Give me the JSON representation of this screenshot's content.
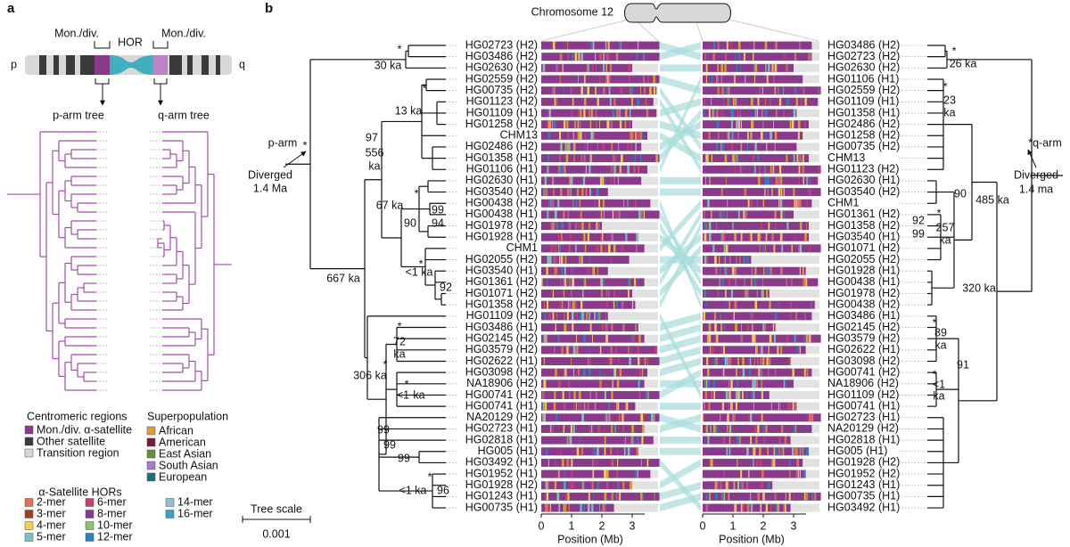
{
  "panel_a": {
    "letter": "a",
    "p": "p",
    "q": "q",
    "mon_div_left": "Mon./div.",
    "hor": "HOR",
    "mon_div_right": "Mon./div.",
    "p_tree": "p-arm tree",
    "q_tree": "q-arm tree"
  },
  "legend": {
    "regions_title": "Centromeric regions",
    "regions": [
      {
        "label": "Mon./div. α-satellite",
        "color": "#8a3a8a"
      },
      {
        "label": "Other satellite",
        "color": "#3a3a3a"
      },
      {
        "label": "Transition region",
        "color": "#d8d8d8"
      }
    ],
    "pop_title": "Superpopulation",
    "pops": [
      {
        "label": "African",
        "color": "#d9a030"
      },
      {
        "label": "American",
        "color": "#7a1838"
      },
      {
        "label": "East Asian",
        "color": "#6b8e35"
      },
      {
        "label": "South Asian",
        "color": "#a77bc9"
      },
      {
        "label": "European",
        "color": "#1f6e7e"
      }
    ],
    "hor_title": "α-Satellite HORs",
    "hors": [
      {
        "label": "2-mer",
        "color": "#e07050"
      },
      {
        "label": "3-mer",
        "color": "#a04020"
      },
      {
        "label": "4-mer",
        "color": "#f0d050"
      },
      {
        "label": "5-mer",
        "color": "#80c0c0"
      },
      {
        "label": "6-mer",
        "color": "#c04070"
      },
      {
        "label": "8-mer",
        "color": "#8a3a8a"
      },
      {
        "label": "10-mer",
        "color": "#90c070"
      },
      {
        "label": "12-mer",
        "color": "#3080c0"
      },
      {
        "label": "14-mer",
        "color": "#90c0e0"
      },
      {
        "label": "16-mer",
        "color": "#40a0c0"
      }
    ],
    "scale_title": "Tree scale",
    "scale_value": "0.001"
  },
  "panel_b": {
    "letter": "b",
    "chromosome": "Chromosome 12",
    "axis": {
      "ticks": [
        0,
        1,
        2,
        3
      ],
      "label": "Position (Mb)"
    },
    "left": {
      "labels": [
        "HG02723 (H2)",
        "HG03486 (H2)",
        "HG02630 (H2)",
        "HG02559 (H2)",
        "HG00735 (H2)",
        "HG01123 (H2)",
        "HG01109 (H1)",
        "HG01258 (H2)",
        "CHM13",
        "HG02486 (H2)",
        "HG01358 (H1)",
        "HG01106 (H1)",
        "HG02630 (H1)",
        "HG03540 (H2)",
        "HG00438 (H2)",
        "HG00438 (H1)",
        "HG01978 (H2)",
        "HG01928 (H1)",
        "CHM1",
        "HG02055 (H2)",
        "HG03540 (H1)",
        "HG01361 (H2)",
        "HG01071 (H2)",
        "HG01358 (H2)",
        "HG01109 (H2)",
        "HG03486 (H1)",
        "HG02145 (H2)",
        "HG03579 (H2)",
        "HG02622 (H1)",
        "HG03098 (H2)",
        "NA18906 (H2)",
        "HG00741 (H2)",
        "HG00741 (H1)",
        "NA20129 (H2)",
        "HG02723 (H1)",
        "HG02818 (H1)",
        "HG005 (H1)",
        "HG03492 (H1)",
        "HG01952 (H1)",
        "HG01928 (H2)",
        "HG01243 (H1)",
        "HG00735 (H1)"
      ],
      "pops": [
        0,
        0,
        0,
        0,
        1,
        1,
        1,
        1,
        4,
        0,
        1,
        1,
        0,
        0,
        2,
        2,
        1,
        1,
        4,
        0,
        0,
        1,
        1,
        1,
        1,
        0,
        0,
        0,
        0,
        0,
        0,
        1,
        1,
        0,
        0,
        0,
        2,
        3,
        1,
        1,
        1,
        1
      ],
      "lengths": [
        3.9,
        3.9,
        3.0,
        3.9,
        3.8,
        3.7,
        3.8,
        3.0,
        3.5,
        3.3,
        3.9,
        3.5,
        3.3,
        2.2,
        3.6,
        3.9,
        2.0,
        3.2,
        3.4,
        2.9,
        2.2,
        3.4,
        3.0,
        3.1,
        2.2,
        3.2,
        3.4,
        3.8,
        3.9,
        3.5,
        3.4,
        3.9,
        3.1,
        3.9,
        3.4,
        3.7,
        3.2,
        3.9,
        3.6,
        3.0,
        3.9,
        2.4
      ]
    },
    "right": {
      "labels": [
        "HG03486 (H2)",
        "HG02723 (H2)",
        "HG02630 (H2)",
        "HG01106 (H1)",
        "HG02559 (H2)",
        "HG01109 (H1)",
        "HG01358 (H1)",
        "HG02486 (H2)",
        "HG01258 (H2)",
        "HG00735 (H2)",
        "CHM13",
        "HG01123 (H2)",
        "HG02630 (H1)",
        "HG03540 (H2)",
        "CHM1",
        "HG01361 (H2)",
        "HG01358 (H2)",
        "HG03540 (H1)",
        "HG01071 (H2)",
        "HG02055 (H2)",
        "HG01928 (H1)",
        "HG00438 (H1)",
        "HG01978 (H2)",
        "HG00438 (H2)",
        "HG03486 (H1)",
        "HG02145 (H2)",
        "HG03579 (H2)",
        "HG02622 (H1)",
        "HG03098 (H2)",
        "HG00741 (H2)",
        "NA18906 (H2)",
        "HG01109 (H2)",
        "HG00741 (H1)",
        "HG02723 (H1)",
        "NA20129 (H2)",
        "HG02818 (H1)",
        "HG005 (H1)",
        "HG01928 (H2)",
        "HG01952 (H2)",
        "HG01243 (H1)",
        "HG00735 (H1)",
        "HG03492 (H1)"
      ],
      "pops": [
        0,
        0,
        0,
        1,
        0,
        1,
        1,
        0,
        1,
        1,
        4,
        1,
        0,
        0,
        4,
        1,
        1,
        0,
        1,
        0,
        1,
        2,
        1,
        2,
        0,
        0,
        0,
        0,
        0,
        1,
        0,
        1,
        1,
        0,
        0,
        0,
        2,
        1,
        1,
        1,
        1,
        3
      ],
      "lengths": [
        3.6,
        3.6,
        3.0,
        3.3,
        3.9,
        3.8,
        3.1,
        3.5,
        3.3,
        3.1,
        3.5,
        3.9,
        3.8,
        3.9,
        3.6,
        3.0,
        3.5,
        3.5,
        3.9,
        1.6,
        3.4,
        3.8,
        2.2,
        3.7,
        3.6,
        2.4,
        3.9,
        3.4,
        2.9,
        3.6,
        3.0,
        2.2,
        3.1,
        3.9,
        3.6,
        2.9,
        3.5,
        3.3,
        3.4,
        2.3,
        3.9,
        2.9
      ]
    },
    "left_tree_notes": [
      "*",
      "30 ka",
      "*",
      "13 ka",
      "97",
      "556",
      "ka",
      "p-arm",
      "*",
      "Diverged",
      "1.4 Ma",
      "*",
      "67 ka",
      "99",
      "94",
      "90",
      "*",
      "<1 ka",
      "92",
      "667 ka",
      "*",
      "72",
      "ka",
      "*",
      "306 ka",
      "*",
      "<1",
      "ka",
      "99",
      "99",
      "99",
      "*",
      "<1 ka",
      "96"
    ],
    "right_tree_notes": [
      "*",
      "26 ka",
      "*",
      "23",
      "ka",
      "*q-arm",
      "Diverged",
      "1.4 ma",
      "90",
      "485 ka",
      "*",
      "92",
      "99",
      "257",
      "ka",
      "320 ka",
      "*",
      "89",
      "ka",
      "*",
      "91",
      "<1",
      "ka"
    ]
  }
}
